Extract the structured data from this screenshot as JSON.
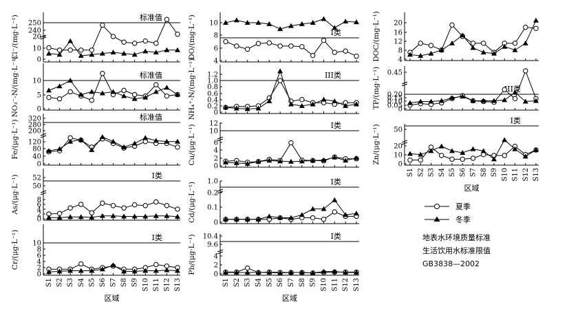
{
  "chart_data": [
    {
      "id": "cl",
      "type": "line",
      "ylabel": "Cl⁻/(mg·L⁻¹)",
      "yticks": [
        "0",
        "10",
        "20",
        "240",
        "250"
      ],
      "std_label": "标准值",
      "series": [
        {
          "name": "夏季",
          "values": [
            10,
            8,
            8,
            8,
            8,
            30,
            20,
            15,
            14,
            16,
            14,
            35,
            22,
            24
          ]
        },
        {
          "name": "冬季",
          "values": [
            5,
            4,
            16,
            3,
            4,
            5,
            6,
            5,
            4,
            7,
            6,
            8,
            8,
            11
          ]
        }
      ]
    },
    {
      "id": "no3",
      "type": "line",
      "ylabel": "NO₃⁻-N/(mg·L⁻¹)",
      "yticks": [
        "0",
        "5",
        "10"
      ],
      "std_label": "标准值",
      "series": [
        {
          "name": "夏季",
          "values": [
            4,
            3.5,
            6,
            4.5,
            3,
            12.5,
            5,
            6.5,
            5,
            4.5,
            8.5,
            4.5,
            5,
            null
          ]
        },
        {
          "name": "冬季",
          "values": [
            6.5,
            8,
            10,
            5,
            6,
            5.5,
            6,
            4.5,
            3.5,
            4,
            6,
            7.5,
            5,
            null
          ]
        }
      ]
    },
    {
      "id": "fe",
      "type": "line",
      "ylabel": "Fe/(μg·L⁻¹)",
      "yticks": [
        "0",
        "40",
        "80",
        "120",
        "200",
        "280",
        "320"
      ],
      "std_label": "标准值",
      "series": [
        {
          "name": "夏季",
          "values": [
            65,
            70,
            140,
            128,
            90,
            135,
            110,
            85,
            95,
            120,
            110,
            110,
            90,
            null
          ]
        },
        {
          "name": "冬季",
          "values": [
            70,
            80,
            120,
            130,
            75,
            145,
            120,
            90,
            110,
            140,
            125,
            120,
            120,
            null
          ]
        }
      ]
    },
    {
      "id": "as",
      "type": "line",
      "ylabel": "As/(μg·L⁻¹)",
      "yticks": [
        "0",
        "2",
        "4",
        "6",
        "8",
        "50",
        "52"
      ],
      "std_label": "I类",
      "series": [
        {
          "name": "夏季",
          "values": [
            2,
            2.2,
            4.5,
            6,
            2.5,
            6.5,
            5.5,
            4.5,
            5.8,
            5.5,
            7,
            5.5,
            4,
            null
          ]
        },
        {
          "name": "冬季",
          "values": [
            0.5,
            0.5,
            0.8,
            0.8,
            0.6,
            1.2,
            1.2,
            1,
            1,
            1,
            1.2,
            1.2,
            0.9,
            null
          ]
        }
      ]
    },
    {
      "id": "cr",
      "type": "line",
      "ylabel": "Cr/(μg·L⁻¹)",
      "yticks": [
        "0",
        "2",
        "4",
        "6",
        "8",
        "10"
      ],
      "std_label": "I类",
      "series": [
        {
          "name": "夏季",
          "values": [
            1.5,
            1.5,
            1.5,
            3.2,
            1.5,
            2,
            2.5,
            1.5,
            1.5,
            2,
            3,
            2.5,
            2,
            null
          ]
        },
        {
          "name": "冬季",
          "values": [
            0.6,
            0.8,
            1,
            1,
            1,
            1.5,
            2.8,
            0.8,
            0.8,
            1,
            1,
            1.2,
            1,
            null
          ]
        }
      ]
    },
    {
      "id": "do",
      "type": "line",
      "ylabel": "DO/(mg·L⁻¹)",
      "yticks": [
        "4",
        "6",
        "8",
        "10"
      ],
      "std_label": "I类",
      "series": [
        {
          "name": "夏季",
          "values": [
            7,
            6.3,
            5.8,
            6.7,
            6.8,
            6.3,
            6.3,
            6.2,
            4.8,
            7.2,
            5.3,
            5.5,
            4.7,
            null
          ]
        },
        {
          "name": "冬季",
          "values": [
            10,
            10.4,
            10,
            10,
            9.8,
            9,
            9.5,
            9.8,
            10,
            10.6,
            9.2,
            10.2,
            10.1,
            null
          ]
        }
      ]
    },
    {
      "id": "nh4",
      "type": "line",
      "ylabel": "NH₄⁺-N/(mg·L⁻¹)",
      "yticks": [
        "0",
        "0.2",
        "0.4",
        "0.6",
        "0.8",
        "1.0",
        "1.2"
      ],
      "std_label": "III类",
      "series": [
        {
          "name": "夏季",
          "values": [
            0.15,
            0.18,
            0.18,
            0.2,
            0.45,
            1.0,
            0.35,
            0.4,
            0.3,
            0.3,
            0.25,
            0.3,
            0.3,
            null
          ]
        },
        {
          "name": "冬季",
          "values": [
            0.15,
            0.12,
            0.1,
            0.12,
            0.35,
            1.3,
            0.25,
            0.2,
            0.25,
            0.4,
            0.35,
            0.2,
            0.25,
            null
          ]
        }
      ]
    },
    {
      "id": "cu",
      "type": "line",
      "ylabel": "Cu/(μg·L⁻¹)",
      "yticks": [
        "0",
        "2",
        "4",
        "6",
        "10",
        "12"
      ],
      "std_label": "I类",
      "series": [
        {
          "name": "夏季",
          "values": [
            1.3,
            1.5,
            1,
            1.2,
            1.8,
            1.5,
            6.5,
            1.6,
            1.5,
            1.4,
            2.5,
            2,
            2,
            null
          ]
        },
        {
          "name": "冬季",
          "values": [
            1,
            0.8,
            0.6,
            1.2,
            1.5,
            1.3,
            1.2,
            1.3,
            1.5,
            1.6,
            2.4,
            1.5,
            2.2,
            null
          ]
        }
      ]
    },
    {
      "id": "cd",
      "type": "line",
      "ylabel": "Cd/(μg·L⁻¹)",
      "yticks": [
        "0",
        "0.1",
        "0.2",
        "1.0"
      ],
      "std_label": "I类",
      "series": [
        {
          "name": "夏季",
          "values": [
            0.02,
            0.02,
            0.02,
            0.02,
            0.02,
            0.03,
            0.02,
            0.03,
            0.03,
            0.02,
            0.07,
            0.04,
            0.04,
            null
          ]
        },
        {
          "name": "冬季",
          "values": [
            0.02,
            0.02,
            0.02,
            0.02,
            0.04,
            0.03,
            0.03,
            0.05,
            0.09,
            0.09,
            0.15,
            0.05,
            0.06,
            null
          ]
        }
      ]
    },
    {
      "id": "pb",
      "type": "line",
      "ylabel": "Pb/(μg·L⁻¹)",
      "yticks": [
        "0",
        "2",
        "4",
        "9.6",
        "10.4"
      ],
      "std_label": "I类",
      "series": [
        {
          "name": "夏季",
          "values": [
            0.4,
            0.4,
            1.3,
            0.3,
            0.4,
            0.3,
            0.3,
            0.3,
            0.2,
            0.3,
            0.4,
            0.4,
            0.4,
            null
          ]
        },
        {
          "name": "冬季",
          "values": [
            0.3,
            0.3,
            0.3,
            0.3,
            0.3,
            0.2,
            0.3,
            0.3,
            0.2,
            0.5,
            0.5,
            0.3,
            0.3,
            null
          ]
        }
      ]
    },
    {
      "id": "doc",
      "type": "line",
      "ylabel": "DOC/(mg·L⁻¹)",
      "yticks": [
        "4",
        "8",
        "12",
        "16",
        "20"
      ],
      "std_label": "",
      "series": [
        {
          "name": "夏季",
          "values": [
            7,
            11,
            10,
            8,
            19,
            14,
            11,
            11,
            7,
            11,
            11,
            18,
            17.5,
            null
          ]
        },
        {
          "name": "冬季",
          "values": [
            6,
            5.5,
            6.5,
            8,
            11,
            14.5,
            9,
            7,
            6.5,
            9.5,
            8,
            11,
            21,
            null
          ]
        }
      ]
    },
    {
      "id": "tp",
      "type": "line",
      "ylabel": "TP/(mg·L⁻¹)",
      "yticks": [
        "0",
        "0.05",
        "0.10",
        "0.15",
        "0.20",
        "0.45"
      ],
      "std_label": "III类",
      "series": [
        {
          "name": "夏季",
          "values": [
            0.05,
            0.07,
            0.06,
            0.08,
            0.14,
            0.18,
            0.11,
            0.1,
            0.09,
            0.25,
            0.14,
            0.45,
            0.14,
            null
          ]
        },
        {
          "name": "冬季",
          "values": [
            0.08,
            0.1,
            0.1,
            0.11,
            0.15,
            0.17,
            0.11,
            0.11,
            0.11,
            0.12,
            0.22,
            0.1,
            0.11,
            null
          ]
        }
      ]
    },
    {
      "id": "zn",
      "type": "line",
      "ylabel": "Zn/(μg·L⁻¹)",
      "yticks": [
        "0",
        "10",
        "20",
        "50"
      ],
      "std_label": "I类",
      "series": [
        {
          "name": "夏季",
          "values": [
            4,
            4,
            18,
            9,
            5,
            5,
            6,
            10,
            9,
            9,
            19,
            10,
            15,
            null
          ]
        },
        {
          "name": "冬季",
          "values": [
            11,
            10,
            14,
            19,
            14,
            12,
            16,
            14,
            5,
            26,
            16,
            8,
            15,
            null
          ]
        }
      ]
    }
  ],
  "x_labels": [
    "S1",
    "S2",
    "S3",
    "S4",
    "S5",
    "S6",
    "S7",
    "S8",
    "S9",
    "S10",
    "S11",
    "S12",
    "S13"
  ],
  "x_title": "区域",
  "legend": {
    "summer": "夏季",
    "winter": "冬季"
  },
  "notes": [
    "地表水环境质量标准",
    "生活饮用水标准限值",
    "GB3838—2002"
  ]
}
